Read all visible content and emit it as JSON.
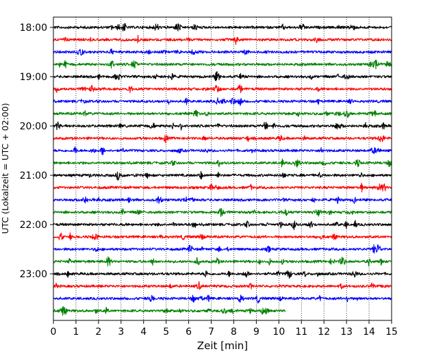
{
  "chart_data": {
    "type": "line",
    "title": "",
    "xlabel": "Zeit  [min]",
    "ylabel": "UTC (Lokalzeit = UTC + 02:00)",
    "xlim": [
      0,
      15
    ],
    "x_ticks": [
      "0",
      "1",
      "2",
      "3",
      "4",
      "5",
      "6",
      "7",
      "8",
      "9",
      "10",
      "11",
      "12",
      "13",
      "14",
      "15"
    ],
    "y_ticks": [
      {
        "label": "18:00",
        "row": 0
      },
      {
        "label": "19:00",
        "row": 4
      },
      {
        "label": "20:00",
        "row": 8
      },
      {
        "label": "21:00",
        "row": 12
      },
      {
        "label": "22:00",
        "row": 16
      },
      {
        "label": "23:00",
        "row": 20
      }
    ],
    "grid": "vertical-dotted",
    "row_minutes": 15,
    "trace_colors": [
      "#000000",
      "#ff0000",
      "#0000ff",
      "#008000"
    ],
    "traces": [
      {
        "start": "18:00",
        "end_min": 15
      },
      {
        "start": "18:15",
        "end_min": 15
      },
      {
        "start": "18:30",
        "end_min": 15
      },
      {
        "start": "18:45",
        "end_min": 15
      },
      {
        "start": "19:00",
        "end_min": 15
      },
      {
        "start": "19:15",
        "end_min": 15
      },
      {
        "start": "19:30",
        "end_min": 15
      },
      {
        "start": "19:45",
        "end_min": 15
      },
      {
        "start": "20:00",
        "end_min": 15
      },
      {
        "start": "20:15",
        "end_min": 15
      },
      {
        "start": "20:30",
        "end_min": 15
      },
      {
        "start": "20:45",
        "end_min": 15
      },
      {
        "start": "21:00",
        "end_min": 15
      },
      {
        "start": "21:15",
        "end_min": 15
      },
      {
        "start": "21:30",
        "end_min": 15
      },
      {
        "start": "21:45",
        "end_min": 15
      },
      {
        "start": "22:00",
        "end_min": 15
      },
      {
        "start": "22:15",
        "end_min": 15
      },
      {
        "start": "22:30",
        "end_min": 15
      },
      {
        "start": "22:45",
        "end_min": 15
      },
      {
        "start": "23:00",
        "end_min": 15
      },
      {
        "start": "23:15",
        "end_min": 15
      },
      {
        "start": "23:30",
        "end_min": 15
      },
      {
        "start": "23:45",
        "end_min": 10.3
      }
    ]
  }
}
